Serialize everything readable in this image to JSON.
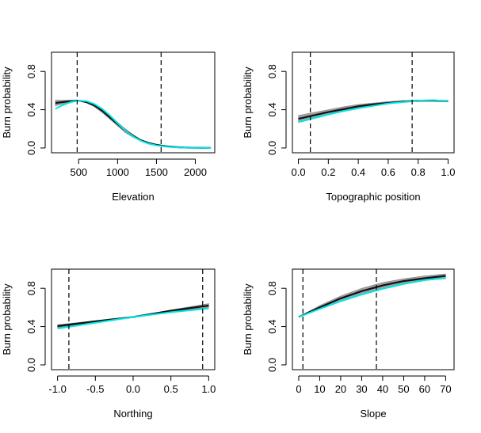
{
  "figure": {
    "background": "#ffffff"
  },
  "chart_data": [
    {
      "type": "line",
      "xlabel": "Elevation",
      "ylabel": "Burn probability",
      "xlim": [
        150,
        2250
      ],
      "ylim": [
        -0.05,
        1.0
      ],
      "xticks": [
        500,
        1000,
        1500,
        2000
      ],
      "xtick_labels": [
        "500",
        "1000",
        "1500",
        "2000"
      ],
      "yticks": [
        0.0,
        0.4,
        0.8
      ],
      "ytick_labels": [
        "0.0",
        "0.4",
        "0.8"
      ],
      "vlines": [
        480,
        1560
      ],
      "series": [
        {
          "role": "ensemble-lower",
          "color": "#555555",
          "x": [
            200,
            300,
            400,
            500,
            600,
            700,
            800,
            900,
            1000,
            1100,
            1200,
            1300,
            1400,
            1500,
            1600,
            1700,
            1800,
            1900,
            2000,
            2100,
            2200
          ],
          "y": [
            0.44,
            0.46,
            0.48,
            0.49,
            0.47,
            0.43,
            0.37,
            0.3,
            0.23,
            0.16,
            0.11,
            0.07,
            0.045,
            0.028,
            0.017,
            0.01,
            0.006,
            0.004,
            0.002,
            0.001,
            0.001
          ]
        },
        {
          "role": "ensemble-upper",
          "color": "#555555",
          "x": [
            200,
            300,
            400,
            500,
            600,
            700,
            800,
            900,
            1000,
            1100,
            1200,
            1300,
            1400,
            1500,
            1600,
            1700,
            1800,
            1900,
            2000,
            2100,
            2200
          ],
          "y": [
            0.5,
            0.5,
            0.5,
            0.5,
            0.49,
            0.46,
            0.41,
            0.34,
            0.27,
            0.2,
            0.14,
            0.09,
            0.06,
            0.038,
            0.024,
            0.015,
            0.009,
            0.005,
            0.003,
            0.002,
            0.001
          ]
        },
        {
          "role": "ensemble-mean",
          "color": "#111111",
          "x": [
            200,
            300,
            400,
            500,
            600,
            700,
            800,
            900,
            1000,
            1100,
            1200,
            1300,
            1400,
            1500,
            1600,
            1700,
            1800,
            1900,
            2000,
            2100,
            2200
          ],
          "y": [
            0.47,
            0.48,
            0.49,
            0.495,
            0.48,
            0.445,
            0.39,
            0.32,
            0.25,
            0.18,
            0.125,
            0.08,
            0.052,
            0.033,
            0.02,
            0.012,
            0.007,
            0.004,
            0.002,
            0.001,
            0.001
          ]
        },
        {
          "role": "fit",
          "color": "#00e5e5",
          "x": [
            200,
            300,
            400,
            500,
            600,
            700,
            800,
            900,
            1000,
            1100,
            1200,
            1300,
            1400,
            1500,
            1600,
            1700,
            1800,
            1900,
            2000,
            2100,
            2200
          ],
          "y": [
            0.41,
            0.45,
            0.48,
            0.495,
            0.49,
            0.46,
            0.41,
            0.34,
            0.26,
            0.18,
            0.12,
            0.075,
            0.045,
            0.027,
            0.016,
            0.009,
            0.005,
            0.003,
            0.002,
            0.001,
            0.0
          ]
        }
      ]
    },
    {
      "type": "line",
      "xlabel": "Topographic position",
      "ylabel": "Burn probability",
      "xlim": [
        -0.04,
        1.04
      ],
      "ylim": [
        -0.05,
        1.0
      ],
      "xticks": [
        0.0,
        0.2,
        0.4,
        0.6,
        0.8,
        1.0
      ],
      "xtick_labels": [
        "0.0",
        "0.2",
        "0.4",
        "0.6",
        "0.8",
        "1.0"
      ],
      "yticks": [
        0.0,
        0.4,
        0.8
      ],
      "ytick_labels": [
        "0.0",
        "0.4",
        "0.8"
      ],
      "vlines": [
        0.08,
        0.76
      ],
      "series": [
        {
          "role": "ensemble-lower",
          "color": "#555555",
          "x": [
            0.0,
            0.1,
            0.2,
            0.3,
            0.4,
            0.5,
            0.6,
            0.7,
            0.8,
            0.9,
            1.0
          ],
          "y": [
            0.27,
            0.31,
            0.35,
            0.385,
            0.415,
            0.44,
            0.46,
            0.475,
            0.485,
            0.49,
            0.48
          ]
        },
        {
          "role": "ensemble-upper",
          "color": "#555555",
          "x": [
            0.0,
            0.1,
            0.2,
            0.3,
            0.4,
            0.5,
            0.6,
            0.7,
            0.8,
            0.9,
            1.0
          ],
          "y": [
            0.34,
            0.37,
            0.4,
            0.43,
            0.455,
            0.47,
            0.485,
            0.495,
            0.5,
            0.5,
            0.5
          ]
        },
        {
          "role": "ensemble-mean",
          "color": "#111111",
          "x": [
            0.0,
            0.1,
            0.2,
            0.3,
            0.4,
            0.5,
            0.6,
            0.7,
            0.8,
            0.9,
            1.0
          ],
          "y": [
            0.305,
            0.34,
            0.375,
            0.405,
            0.435,
            0.455,
            0.47,
            0.485,
            0.495,
            0.495,
            0.49
          ]
        },
        {
          "role": "fit",
          "color": "#00e5e5",
          "x": [
            0.0,
            0.1,
            0.2,
            0.3,
            0.4,
            0.5,
            0.6,
            0.7,
            0.8,
            0.9,
            1.0
          ],
          "y": [
            0.27,
            0.31,
            0.35,
            0.385,
            0.415,
            0.44,
            0.465,
            0.48,
            0.495,
            0.5,
            0.49
          ]
        }
      ]
    },
    {
      "type": "line",
      "xlabel": "Northing",
      "ylabel": "Burn probability",
      "xlim": [
        -1.08,
        1.08
      ],
      "ylim": [
        -0.05,
        1.0
      ],
      "xticks": [
        -1.0,
        -0.5,
        0.0,
        0.5,
        1.0
      ],
      "xtick_labels": [
        "-1.0",
        "-0.5",
        "0.0",
        "0.5",
        "1.0"
      ],
      "yticks": [
        0.0,
        0.4,
        0.8
      ],
      "ytick_labels": [
        "0.0",
        "0.4",
        "0.8"
      ],
      "vlines": [
        -0.85,
        0.92
      ],
      "series": [
        {
          "role": "ensemble-lower",
          "color": "#555555",
          "x": [
            -1.0,
            -0.5,
            0.0,
            0.5,
            1.0
          ],
          "y": [
            0.39,
            0.445,
            0.5,
            0.555,
            0.6
          ]
        },
        {
          "role": "ensemble-upper",
          "color": "#555555",
          "x": [
            -1.0,
            -0.5,
            0.0,
            0.5,
            1.0
          ],
          "y": [
            0.42,
            0.46,
            0.5,
            0.575,
            0.64
          ]
        },
        {
          "role": "ensemble-mean",
          "color": "#111111",
          "x": [
            -1.0,
            -0.5,
            0.0,
            0.5,
            1.0
          ],
          "y": [
            0.405,
            0.455,
            0.5,
            0.565,
            0.62
          ]
        },
        {
          "role": "fit",
          "color": "#00e5e5",
          "x": [
            -1.0,
            -0.5,
            0.0,
            0.5,
            1.0
          ],
          "y": [
            0.38,
            0.44,
            0.5,
            0.55,
            0.59
          ]
        }
      ]
    },
    {
      "type": "line",
      "xlabel": "Slope",
      "ylabel": "Burn probability",
      "xlim": [
        -3,
        74
      ],
      "ylim": [
        -0.05,
        1.0
      ],
      "xticks": [
        0,
        10,
        20,
        30,
        40,
        50,
        60,
        70
      ],
      "xtick_labels": [
        "0",
        "10",
        "20",
        "30",
        "40",
        "50",
        "60",
        "70"
      ],
      "yticks": [
        0.0,
        0.4,
        0.8
      ],
      "ytick_labels": [
        "0.0",
        "0.4",
        "0.8"
      ],
      "vlines": [
        2,
        37
      ],
      "series": [
        {
          "role": "ensemble-lower",
          "color": "#555555",
          "x": [
            0,
            10,
            20,
            30,
            40,
            50,
            60,
            70
          ],
          "y": [
            0.5,
            0.58,
            0.66,
            0.73,
            0.79,
            0.84,
            0.88,
            0.9
          ]
        },
        {
          "role": "ensemble-upper",
          "color": "#555555",
          "x": [
            0,
            10,
            20,
            30,
            40,
            50,
            60,
            70
          ],
          "y": [
            0.5,
            0.62,
            0.72,
            0.8,
            0.86,
            0.9,
            0.93,
            0.95
          ]
        },
        {
          "role": "ensemble-mean",
          "color": "#111111",
          "x": [
            0,
            10,
            20,
            30,
            40,
            50,
            60,
            70
          ],
          "y": [
            0.5,
            0.6,
            0.695,
            0.77,
            0.83,
            0.875,
            0.905,
            0.93
          ]
        },
        {
          "role": "fit",
          "color": "#00e5e5",
          "x": [
            0,
            10,
            20,
            30,
            40,
            50,
            60,
            70
          ],
          "y": [
            0.5,
            0.585,
            0.665,
            0.735,
            0.795,
            0.845,
            0.885,
            0.91
          ]
        }
      ]
    }
  ]
}
